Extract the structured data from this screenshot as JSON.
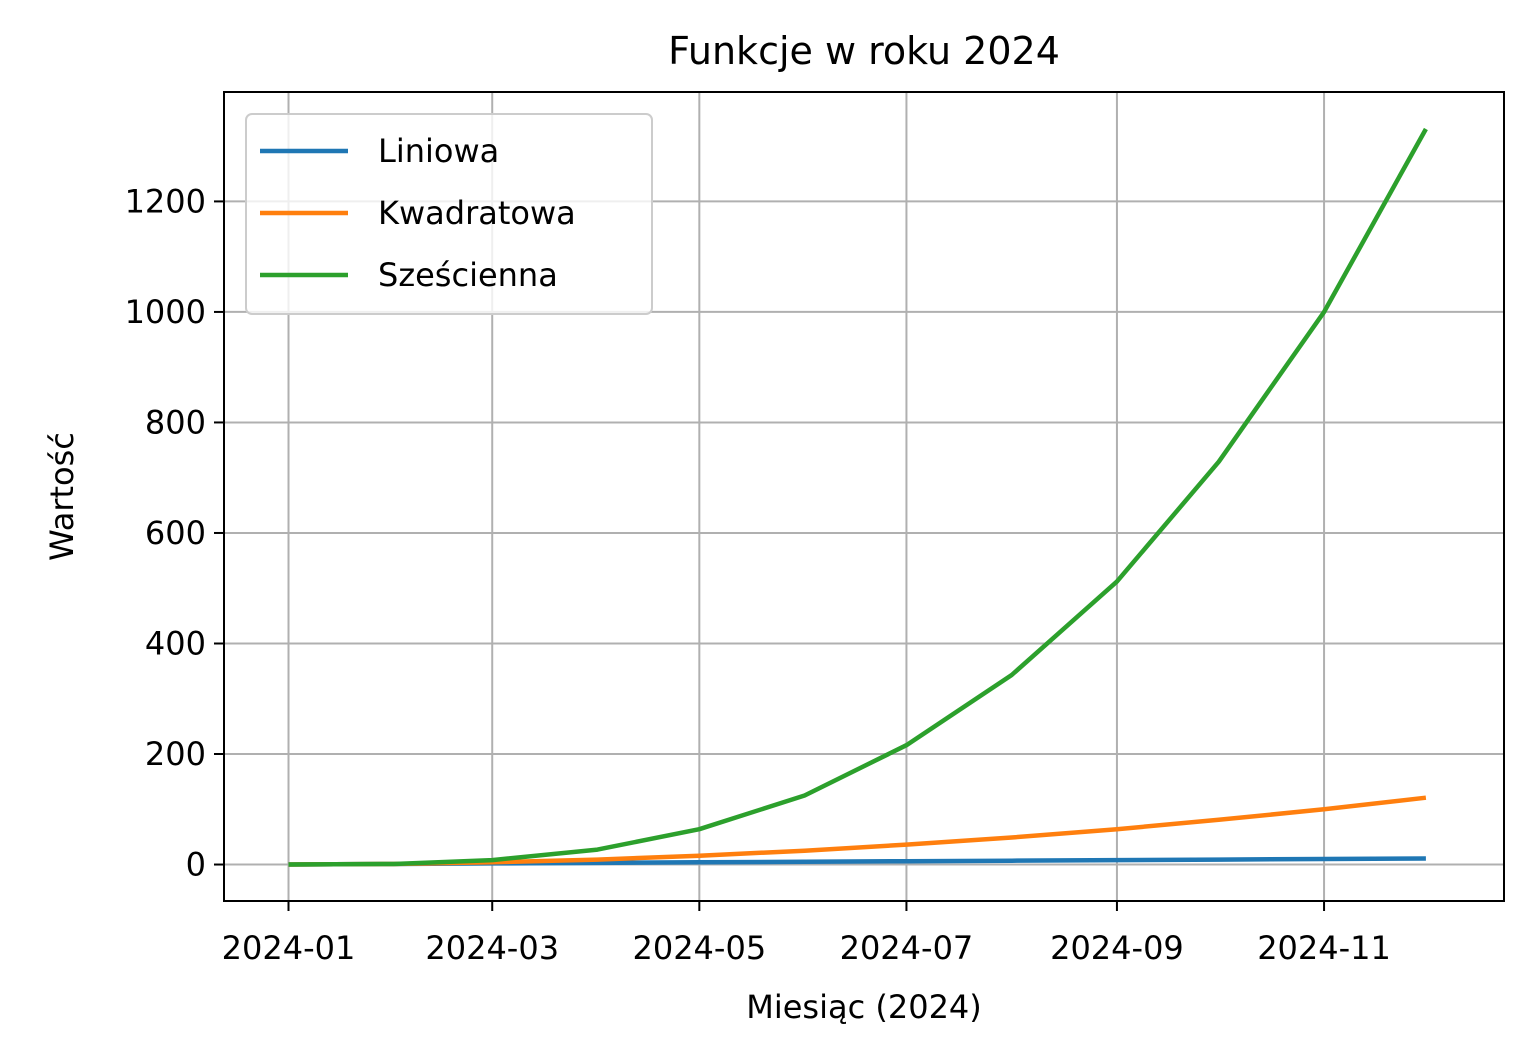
{
  "chart_data": {
    "type": "line",
    "title": "Funkcje w roku 2024",
    "xlabel": "Miesiąc (2024)",
    "ylabel": "Wartość",
    "x": [
      "2024-01-01",
      "2024-02-01",
      "2024-03-01",
      "2024-04-01",
      "2024-05-01",
      "2024-06-01",
      "2024-07-01",
      "2024-08-01",
      "2024-09-01",
      "2024-10-01",
      "2024-11-01",
      "2024-12-01"
    ],
    "x_ticks": [
      "2024-01",
      "2024-03",
      "2024-05",
      "2024-07",
      "2024-09",
      "2024-11"
    ],
    "y_ticks": [
      0,
      200,
      400,
      600,
      800,
      1000,
      1200
    ],
    "ylim": [
      -66,
      1398
    ],
    "xlim": [
      "2023-12-13",
      "2024-12-24"
    ],
    "grid": true,
    "legend_position": "top-left",
    "series": [
      {
        "name": "Liniowa",
        "color": "#1f77b4",
        "values": [
          0,
          1,
          2,
          3,
          4,
          5,
          6,
          7,
          8,
          9,
          10,
          11
        ]
      },
      {
        "name": "Kwadratowa",
        "color": "#ff7f0e",
        "values": [
          0,
          1,
          4,
          9,
          16,
          25,
          36,
          49,
          64,
          81,
          100,
          121
        ]
      },
      {
        "name": "Sześcienna",
        "color": "#2ca02c",
        "values": [
          0,
          1,
          8,
          27,
          64,
          125,
          216,
          343,
          512,
          729,
          1000,
          1331
        ]
      }
    ]
  }
}
